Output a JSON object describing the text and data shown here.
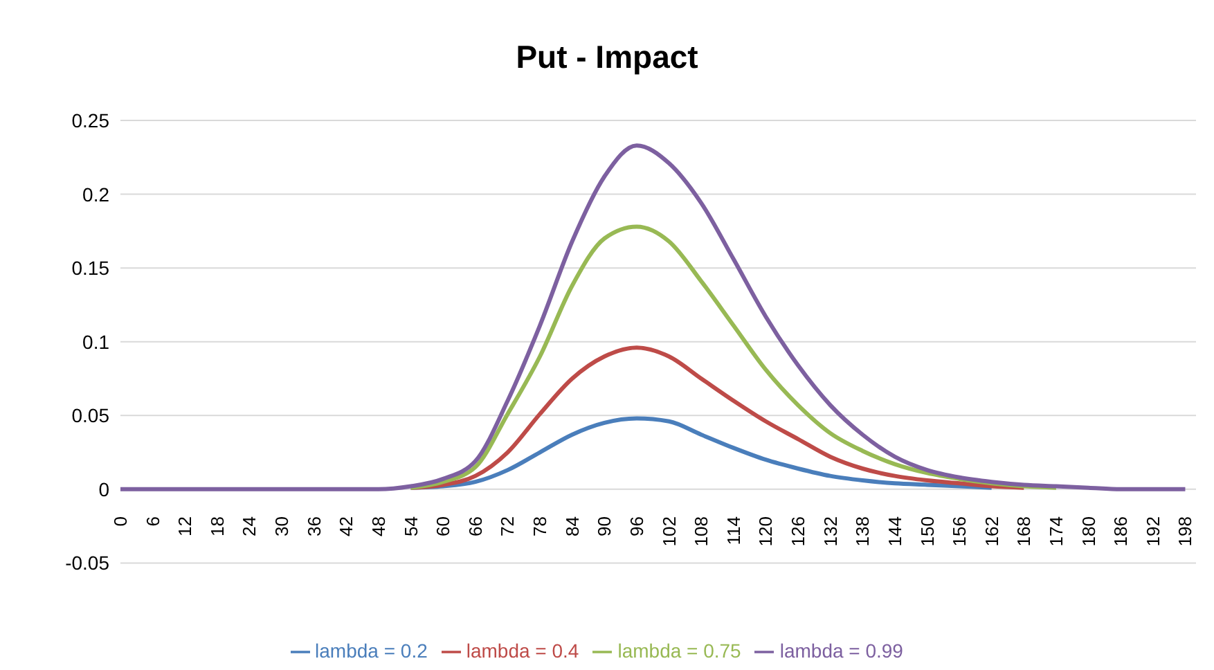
{
  "chart_data": {
    "type": "line",
    "title": "Put - Impact",
    "x": [
      0,
      6,
      12,
      18,
      24,
      30,
      36,
      42,
      48,
      54,
      60,
      66,
      72,
      78,
      84,
      90,
      96,
      102,
      108,
      114,
      120,
      126,
      132,
      138,
      144,
      150,
      156,
      162,
      168,
      174,
      180,
      186,
      192,
      198
    ],
    "series": [
      {
        "name": "lambda = 0.2",
        "color": "#4a7ebb",
        "values": [
          null,
          null,
          null,
          null,
          null,
          null,
          null,
          null,
          null,
          0.001,
          0.002,
          0.005,
          0.013,
          0.025,
          0.037,
          0.045,
          0.048,
          0.046,
          0.037,
          0.028,
          0.02,
          0.014,
          0.009,
          0.006,
          0.004,
          0.003,
          0.002,
          0.001,
          null,
          null,
          null,
          null,
          null,
          null
        ]
      },
      {
        "name": "lambda = 0.4",
        "color": "#be4b48",
        "values": [
          null,
          null,
          null,
          null,
          null,
          null,
          null,
          null,
          null,
          0.001,
          0.003,
          0.009,
          0.025,
          0.051,
          0.075,
          0.09,
          0.096,
          0.09,
          0.075,
          0.06,
          0.046,
          0.034,
          0.022,
          0.014,
          0.009,
          0.006,
          0.004,
          0.002,
          0.001,
          null,
          null,
          null,
          null,
          null
        ]
      },
      {
        "name": "lambda = 0.75",
        "color": "#98b954",
        "values": [
          null,
          null,
          null,
          null,
          null,
          null,
          null,
          null,
          null,
          0.001,
          0.005,
          0.015,
          0.051,
          0.09,
          0.138,
          0.17,
          0.178,
          0.168,
          0.141,
          0.111,
          0.081,
          0.057,
          0.038,
          0.026,
          0.017,
          0.011,
          0.007,
          0.004,
          0.002,
          0.001,
          null,
          null,
          null,
          null
        ]
      },
      {
        "name": "lambda = 0.99",
        "color": "#7d60a0",
        "values": [
          0,
          0,
          0,
          0,
          0,
          0,
          0,
          0,
          0,
          0.002,
          0.007,
          0.019,
          0.06,
          0.111,
          0.168,
          0.212,
          0.233,
          0.221,
          0.194,
          0.156,
          0.117,
          0.084,
          0.057,
          0.037,
          0.022,
          0.013,
          0.008,
          0.005,
          0.003,
          0.002,
          0.001,
          0,
          0,
          0
        ]
      }
    ],
    "xlim": [
      0,
      200
    ],
    "xticks": [
      0,
      6,
      12,
      18,
      24,
      30,
      36,
      42,
      48,
      54,
      60,
      66,
      72,
      78,
      84,
      90,
      96,
      102,
      108,
      114,
      120,
      126,
      132,
      138,
      144,
      150,
      156,
      162,
      168,
      174,
      180,
      186,
      192,
      198
    ],
    "ylim": [
      -0.05,
      0.25
    ],
    "yticks": [
      -0.05,
      0,
      0.05,
      0.1,
      0.15,
      0.2,
      0.25
    ],
    "grid": "y",
    "legend": "bottom",
    "marker": "none",
    "line_style": "solid"
  }
}
